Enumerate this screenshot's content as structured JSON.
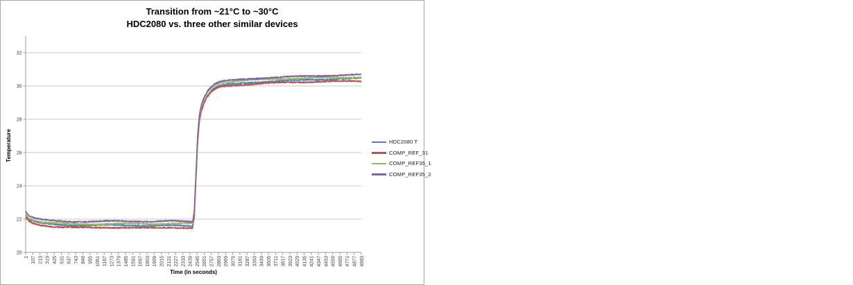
{
  "frame": {
    "border_color": "#a6a6a6",
    "background": "#ffffff"
  },
  "chart_data": {
    "type": "line",
    "title": "Transition from  ~21°C to ~30°C",
    "subtitle": "HDC2080 vs. three other similar devices",
    "xlabel": "Time (in seconds)",
    "ylabel": "Temperature",
    "ylim": [
      20,
      33
    ],
    "yticks": [
      20,
      22,
      24,
      26,
      28,
      30,
      32
    ],
    "xtick_labels": [
      "1",
      "107",
      "213",
      "319",
      "425",
      "531",
      "637",
      "743",
      "849",
      "955",
      "1061",
      "1167",
      "1273",
      "1379",
      "1485",
      "1591",
      "1697",
      "1803",
      "1909",
      "2015",
      "2121",
      "2227",
      "2333",
      "2439",
      "2545",
      "2651",
      "2757",
      "2863",
      "2969",
      "3075",
      "3181",
      "3287",
      "3393",
      "3499",
      "3605",
      "3711",
      "3817",
      "3923",
      "4029",
      "4135",
      "4241",
      "4347",
      "4453",
      "4559",
      "4665",
      "4771",
      "4877",
      "4983"
    ],
    "x_range": [
      1,
      4983
    ],
    "grid": true,
    "grid_color": "#c8c8c8",
    "axis_color": "#9c9c9c",
    "tick_label_color": "#3f3f3f",
    "legend_position": "right",
    "noise_amplitude": 0.037,
    "series": [
      {
        "name": "HDC2080 T",
        "color": "#4F81BD",
        "keypoints": [
          [
            1,
            22.22
          ],
          [
            50,
            21.98
          ],
          [
            120,
            21.85
          ],
          [
            250,
            21.73
          ],
          [
            450,
            21.66
          ],
          [
            700,
            21.62
          ],
          [
            1000,
            21.6
          ],
          [
            1300,
            21.63
          ],
          [
            1600,
            21.62
          ],
          [
            1900,
            21.6
          ],
          [
            2150,
            21.63
          ],
          [
            2350,
            21.62
          ],
          [
            2480,
            21.6
          ],
          [
            2505,
            22.3
          ],
          [
            2530,
            24.6
          ],
          [
            2555,
            26.8
          ],
          [
            2580,
            28.0
          ],
          [
            2610,
            28.6
          ],
          [
            2650,
            29.05
          ],
          [
            2700,
            29.45
          ],
          [
            2760,
            29.75
          ],
          [
            2830,
            29.95
          ],
          [
            2900,
            30.05
          ],
          [
            3000,
            30.1
          ],
          [
            3150,
            30.15
          ],
          [
            3350,
            30.22
          ],
          [
            3600,
            30.28
          ],
          [
            3900,
            30.33
          ],
          [
            4200,
            30.36
          ],
          [
            4500,
            30.4
          ],
          [
            4800,
            30.42
          ],
          [
            4983,
            30.44
          ]
        ]
      },
      {
        "name": "COMP_REF_31",
        "color": "#C0504D",
        "keypoints": [
          [
            1,
            22.08
          ],
          [
            50,
            21.85
          ],
          [
            120,
            21.7
          ],
          [
            250,
            21.6
          ],
          [
            450,
            21.53
          ],
          [
            700,
            21.5
          ],
          [
            1000,
            21.48
          ],
          [
            1300,
            21.51
          ],
          [
            1600,
            21.5
          ],
          [
            1900,
            21.48
          ],
          [
            2150,
            21.51
          ],
          [
            2350,
            21.5
          ],
          [
            2480,
            21.48
          ],
          [
            2505,
            22.2
          ],
          [
            2530,
            24.5
          ],
          [
            2555,
            26.7
          ],
          [
            2580,
            27.9
          ],
          [
            2610,
            28.5
          ],
          [
            2650,
            28.95
          ],
          [
            2700,
            29.35
          ],
          [
            2760,
            29.65
          ],
          [
            2830,
            29.85
          ],
          [
            2900,
            29.95
          ],
          [
            3000,
            30.0
          ],
          [
            3150,
            30.04
          ],
          [
            3350,
            30.1
          ],
          [
            3600,
            30.15
          ],
          [
            3900,
            30.2
          ],
          [
            4200,
            30.23
          ],
          [
            4500,
            30.26
          ],
          [
            4800,
            30.28
          ],
          [
            4983,
            30.3
          ]
        ]
      },
      {
        "name": "COMP_REF35_1",
        "color": "#9BBB59",
        "keypoints": [
          [
            1,
            22.32
          ],
          [
            50,
            22.08
          ],
          [
            120,
            21.95
          ],
          [
            250,
            21.84
          ],
          [
            450,
            21.77
          ],
          [
            700,
            21.73
          ],
          [
            1000,
            21.71
          ],
          [
            1300,
            21.74
          ],
          [
            1600,
            21.73
          ],
          [
            1900,
            21.71
          ],
          [
            2150,
            21.74
          ],
          [
            2350,
            21.73
          ],
          [
            2480,
            21.71
          ],
          [
            2505,
            22.45
          ],
          [
            2530,
            24.75
          ],
          [
            2555,
            26.95
          ],
          [
            2580,
            28.15
          ],
          [
            2610,
            28.75
          ],
          [
            2650,
            29.2
          ],
          [
            2700,
            29.6
          ],
          [
            2760,
            29.88
          ],
          [
            2830,
            30.07
          ],
          [
            2900,
            30.17
          ],
          [
            3000,
            30.22
          ],
          [
            3150,
            30.27
          ],
          [
            3350,
            30.34
          ],
          [
            3600,
            30.4
          ],
          [
            3900,
            30.45
          ],
          [
            4200,
            30.48
          ],
          [
            4500,
            30.52
          ],
          [
            4800,
            30.54
          ],
          [
            4983,
            30.56
          ]
        ]
      },
      {
        "name": "COMP_REF35_2",
        "color": "#8064A2",
        "keypoints": [
          [
            1,
            22.48
          ],
          [
            50,
            22.22
          ],
          [
            120,
            22.08
          ],
          [
            250,
            21.97
          ],
          [
            450,
            21.9
          ],
          [
            700,
            21.86
          ],
          [
            1000,
            21.84
          ],
          [
            1300,
            21.87
          ],
          [
            1600,
            21.86
          ],
          [
            1900,
            21.84
          ],
          [
            2150,
            21.87
          ],
          [
            2350,
            21.86
          ],
          [
            2480,
            21.84
          ],
          [
            2505,
            22.6
          ],
          [
            2530,
            24.9
          ],
          [
            2555,
            27.1
          ],
          [
            2580,
            28.3
          ],
          [
            2610,
            28.9
          ],
          [
            2650,
            29.35
          ],
          [
            2700,
            29.72
          ],
          [
            2760,
            30.0
          ],
          [
            2830,
            30.18
          ],
          [
            2900,
            30.28
          ],
          [
            3000,
            30.33
          ],
          [
            3150,
            30.38
          ],
          [
            3350,
            30.45
          ],
          [
            3600,
            30.52
          ],
          [
            3900,
            30.57
          ],
          [
            4200,
            30.6
          ],
          [
            4500,
            30.64
          ],
          [
            4800,
            30.66
          ],
          [
            4983,
            30.68
          ]
        ]
      }
    ]
  }
}
